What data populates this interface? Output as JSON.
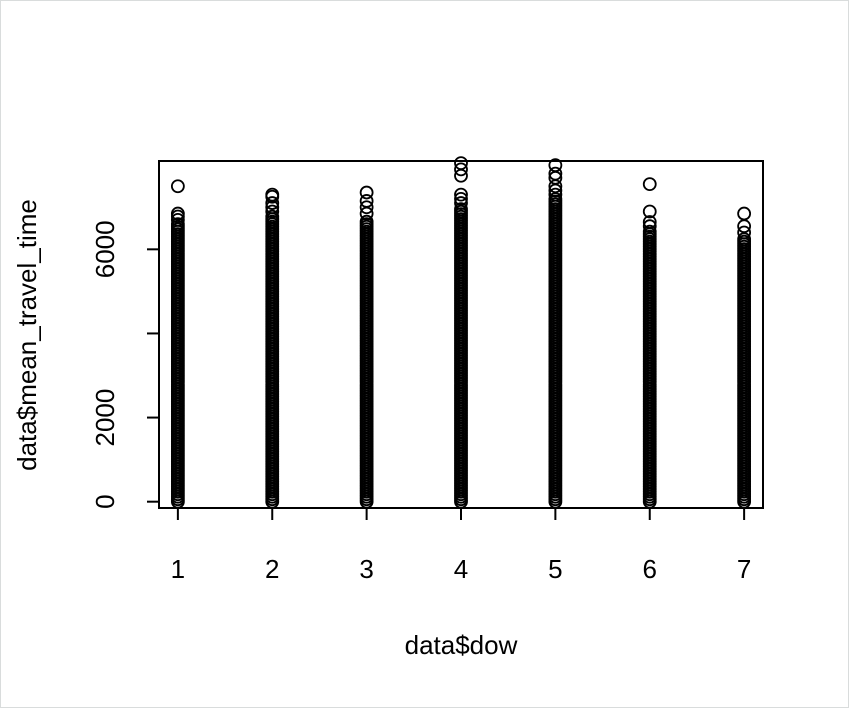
{
  "chart_data": {
    "type": "scatter",
    "title": "",
    "xlabel": "data$dow",
    "ylabel": "data$mean_travel_time",
    "x_ticks": [
      "1",
      "2",
      "3",
      "4",
      "5",
      "6",
      "7"
    ],
    "y_ticks": [
      "0",
      "2000",
      "4000",
      "6000"
    ],
    "y_tick_labels_shown": [
      "0",
      "2000",
      "6000"
    ],
    "xlim": [
      0.8,
      7.2
    ],
    "ylim": [
      -150,
      8100
    ],
    "grid": false,
    "legend": "none",
    "marker": "open-circle",
    "marker_color": "#000000",
    "series": [
      {
        "x": 1,
        "dense_range": [
          0,
          6600
        ],
        "outliers": [
          6700,
          6780,
          6850,
          7500
        ]
      },
      {
        "x": 2,
        "dense_range": [
          0,
          6800
        ],
        "outliers": [
          6900,
          7000,
          7100,
          7250,
          7300
        ]
      },
      {
        "x": 3,
        "dense_range": [
          0,
          6700
        ],
        "outliers": [
          6850,
          7000,
          7150,
          7350
        ]
      },
      {
        "x": 4,
        "dense_range": [
          0,
          7000
        ],
        "outliers": [
          7100,
          7200,
          7300,
          7750,
          7900,
          8050
        ]
      },
      {
        "x": 5,
        "dense_range": [
          0,
          7200
        ],
        "outliers": [
          7300,
          7400,
          7500,
          7700,
          7800,
          8000
        ]
      },
      {
        "x": 6,
        "dense_range": [
          0,
          6450
        ],
        "outliers": [
          6550,
          6650,
          6900,
          7550
        ]
      },
      {
        "x": 7,
        "dense_range": [
          0,
          6300
        ],
        "outliers": [
          6400,
          6550,
          6850
        ]
      }
    ]
  }
}
